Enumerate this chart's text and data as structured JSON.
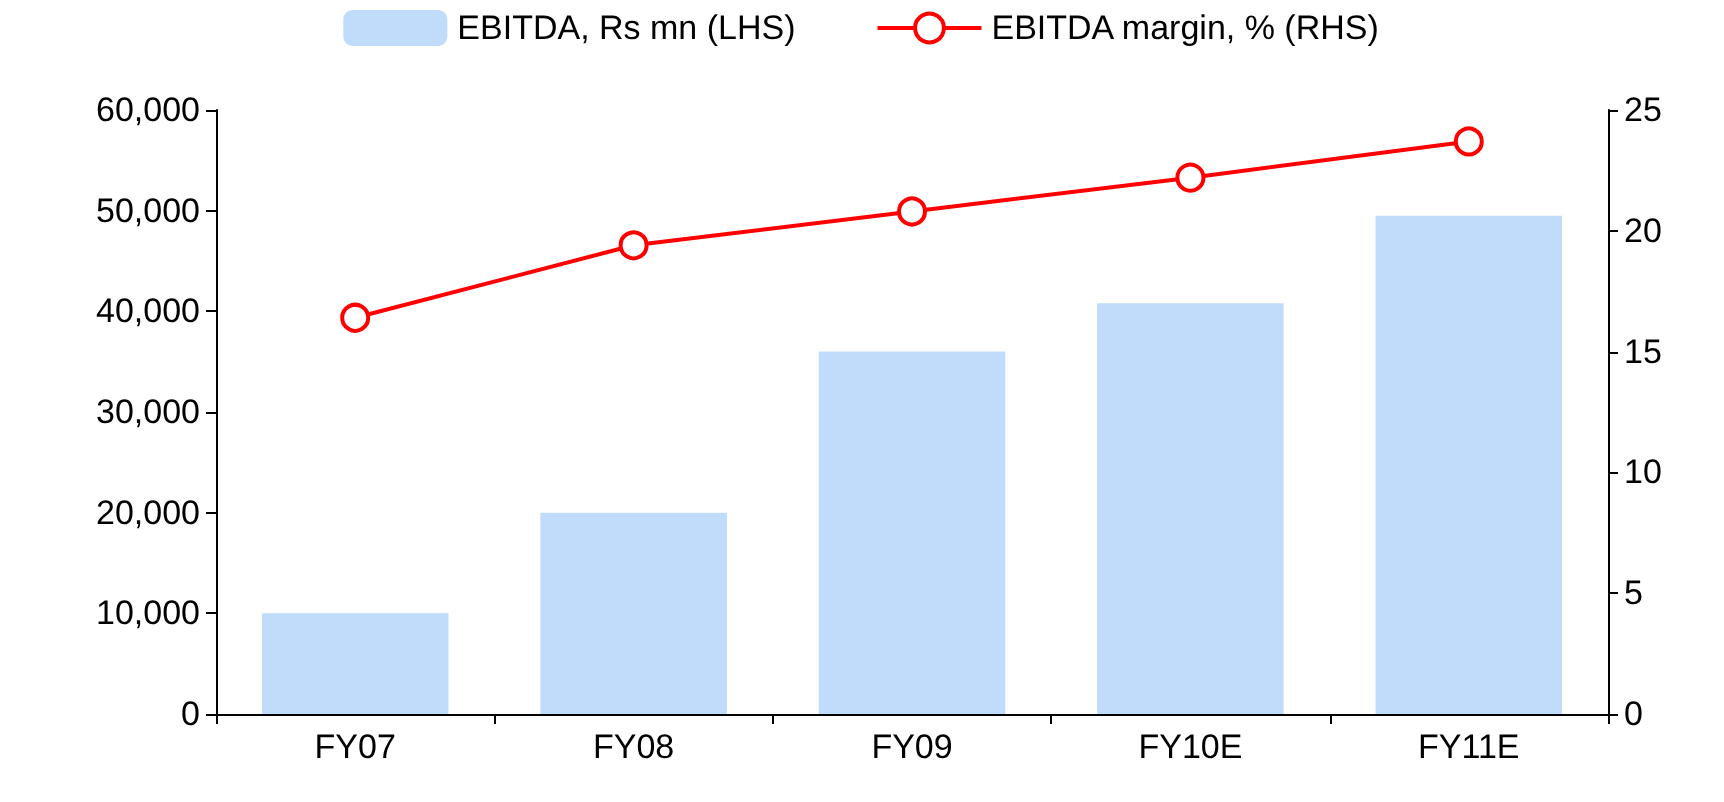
{
  "chart_data": {
    "type": "bar",
    "categories": [
      "FY07",
      "FY08",
      "FY09",
      "FY10E",
      "FY11E"
    ],
    "series": [
      {
        "name": "EBITDA, Rs mn (LHS)",
        "color": "#c0dcfa",
        "values": [
          10000,
          20000,
          36000,
          40800,
          49500
        ]
      },
      {
        "name": "EBITDA margin, % (RHS)",
        "type": "line",
        "axis": "y2",
        "color": "#ff0000",
        "values": [
          16.4,
          19.4,
          20.8,
          22.2,
          23.7
        ]
      }
    ],
    "ylim": [
      0,
      60000
    ],
    "yticks": [
      {
        "value": 0,
        "label": "0"
      },
      {
        "value": 10000,
        "label": "10,000"
      },
      {
        "value": 20000,
        "label": "20,000"
      },
      {
        "value": 30000,
        "label": "30,000"
      },
      {
        "value": 40000,
        "label": "40,000"
      },
      {
        "value": 50000,
        "label": "50,000"
      },
      {
        "value": 60000,
        "label": "60,000"
      }
    ],
    "y2lim": [
      0,
      25
    ],
    "y2ticks": [
      0,
      5,
      10,
      15,
      20,
      25
    ],
    "legend": "top",
    "marker": "circle",
    "grid": false
  }
}
